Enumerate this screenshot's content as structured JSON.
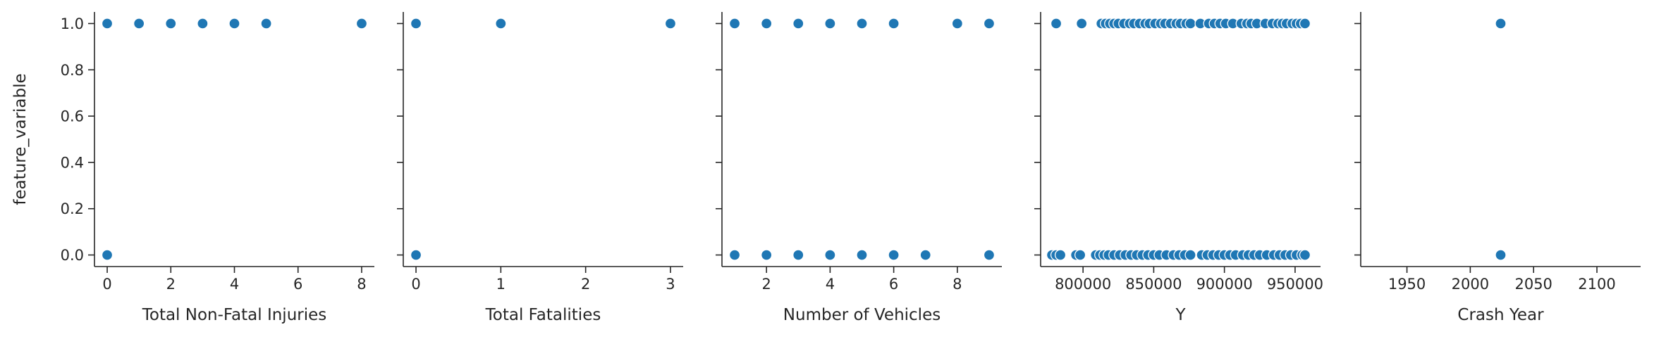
{
  "chart_data": [
    {
      "type": "scatter",
      "xlabel": "Total Non-Fatal Injuries",
      "ylabel": "feature_variable",
      "xlim": [
        -0.4,
        8.4
      ],
      "ylim": [
        -0.05,
        1.05
      ],
      "xticks": [
        0,
        2,
        4,
        6,
        8
      ],
      "xtick_labels": [
        "0",
        "2",
        "4",
        "6",
        "8"
      ],
      "yticks": [
        0.0,
        0.2,
        0.4,
        0.6,
        0.8,
        1.0
      ],
      "ytick_labels": [
        "0.0",
        "0.2",
        "0.4",
        "0.6",
        "0.8",
        "1.0"
      ],
      "points": [
        {
          "x": 0,
          "y": 1
        },
        {
          "x": 1,
          "y": 1
        },
        {
          "x": 2,
          "y": 1
        },
        {
          "x": 3,
          "y": 1
        },
        {
          "x": 4,
          "y": 1
        },
        {
          "x": 5,
          "y": 1
        },
        {
          "x": 8,
          "y": 1
        },
        {
          "x": 0,
          "y": 0
        }
      ]
    },
    {
      "type": "scatter",
      "xlabel": "Total Fatalities",
      "ylabel": "",
      "xlim": [
        -0.15,
        3.15
      ],
      "ylim": [
        -0.05,
        1.05
      ],
      "xticks": [
        0,
        1,
        2,
        3
      ],
      "xtick_labels": [
        "0",
        "1",
        "2",
        "3"
      ],
      "yticks": [
        0.0,
        0.2,
        0.4,
        0.6,
        0.8,
        1.0
      ],
      "ytick_labels": [],
      "points": [
        {
          "x": 0,
          "y": 1
        },
        {
          "x": 1,
          "y": 1
        },
        {
          "x": 3,
          "y": 1
        },
        {
          "x": 0,
          "y": 0
        }
      ]
    },
    {
      "type": "scatter",
      "xlabel": "Number of Vehicles",
      "ylabel": "",
      "xlim": [
        0.6,
        9.4
      ],
      "ylim": [
        -0.05,
        1.05
      ],
      "xticks": [
        2,
        4,
        6,
        8
      ],
      "xtick_labels": [
        "2",
        "4",
        "6",
        "8"
      ],
      "yticks": [
        0.0,
        0.2,
        0.4,
        0.6,
        0.8,
        1.0
      ],
      "ytick_labels": [],
      "points": [
        {
          "x": 1,
          "y": 1
        },
        {
          "x": 2,
          "y": 1
        },
        {
          "x": 3,
          "y": 1
        },
        {
          "x": 4,
          "y": 1
        },
        {
          "x": 5,
          "y": 1
        },
        {
          "x": 6,
          "y": 1
        },
        {
          "x": 8,
          "y": 1
        },
        {
          "x": 9,
          "y": 1
        },
        {
          "x": 1,
          "y": 0
        },
        {
          "x": 2,
          "y": 0
        },
        {
          "x": 3,
          "y": 0
        },
        {
          "x": 4,
          "y": 0
        },
        {
          "x": 5,
          "y": 0
        },
        {
          "x": 6,
          "y": 0
        },
        {
          "x": 7,
          "y": 0
        },
        {
          "x": 9,
          "y": 0
        }
      ]
    },
    {
      "type": "scatter",
      "xlabel": "Y",
      "ylabel": "",
      "xlim": [
        770000,
        968000
      ],
      "ylim": [
        -0.05,
        1.05
      ],
      "xticks": [
        800000,
        850000,
        900000,
        950000
      ],
      "xtick_labels": [
        "800000",
        "850000",
        "900000",
        "950000"
      ],
      "yticks": [
        0.0,
        0.2,
        0.4,
        0.6,
        0.8,
        1.0
      ],
      "ytick_labels": [],
      "points": [
        {
          "x": 781000,
          "y": 1
        },
        {
          "x": 799000,
          "y": 1
        },
        {
          "x": 813000,
          "y": 1
        },
        {
          "x": 816000,
          "y": 1
        },
        {
          "x": 819000,
          "y": 1
        },
        {
          "x": 822000,
          "y": 1
        },
        {
          "x": 825000,
          "y": 1
        },
        {
          "x": 829000,
          "y": 1
        },
        {
          "x": 833000,
          "y": 1
        },
        {
          "x": 836000,
          "y": 1
        },
        {
          "x": 840000,
          "y": 1
        },
        {
          "x": 844000,
          "y": 1
        },
        {
          "x": 847000,
          "y": 1
        },
        {
          "x": 851000,
          "y": 1
        },
        {
          "x": 855000,
          "y": 1
        },
        {
          "x": 858000,
          "y": 1
        },
        {
          "x": 862000,
          "y": 1
        },
        {
          "x": 866000,
          "y": 1
        },
        {
          "x": 869000,
          "y": 1
        },
        {
          "x": 873000,
          "y": 1
        },
        {
          "x": 876000,
          "y": 1
        },
        {
          "x": 883000,
          "y": 1
        },
        {
          "x": 889000,
          "y": 1
        },
        {
          "x": 893000,
          "y": 1
        },
        {
          "x": 897000,
          "y": 1
        },
        {
          "x": 901000,
          "y": 1
        },
        {
          "x": 906000,
          "y": 1
        },
        {
          "x": 912000,
          "y": 1
        },
        {
          "x": 916000,
          "y": 1
        },
        {
          "x": 919000,
          "y": 1
        },
        {
          "x": 923000,
          "y": 1
        },
        {
          "x": 929000,
          "y": 1
        },
        {
          "x": 934000,
          "y": 1
        },
        {
          "x": 938000,
          "y": 1
        },
        {
          "x": 941000,
          "y": 1
        },
        {
          "x": 944000,
          "y": 1
        },
        {
          "x": 948000,
          "y": 1
        },
        {
          "x": 951000,
          "y": 1
        },
        {
          "x": 954000,
          "y": 1
        },
        {
          "x": 957000,
          "y": 1
        },
        {
          "x": 778000,
          "y": 0
        },
        {
          "x": 781000,
          "y": 0
        },
        {
          "x": 784000,
          "y": 0
        },
        {
          "x": 795000,
          "y": 0
        },
        {
          "x": 798000,
          "y": 0
        },
        {
          "x": 809000,
          "y": 0
        },
        {
          "x": 812000,
          "y": 0
        },
        {
          "x": 815000,
          "y": 0
        },
        {
          "x": 818000,
          "y": 0
        },
        {
          "x": 822000,
          "y": 0
        },
        {
          "x": 826000,
          "y": 0
        },
        {
          "x": 830000,
          "y": 0
        },
        {
          "x": 834000,
          "y": 0
        },
        {
          "x": 838000,
          "y": 0
        },
        {
          "x": 842000,
          "y": 0
        },
        {
          "x": 846000,
          "y": 0
        },
        {
          "x": 850000,
          "y": 0
        },
        {
          "x": 854000,
          "y": 0
        },
        {
          "x": 859000,
          "y": 0
        },
        {
          "x": 864000,
          "y": 0
        },
        {
          "x": 868000,
          "y": 0
        },
        {
          "x": 872000,
          "y": 0
        },
        {
          "x": 876000,
          "y": 0
        },
        {
          "x": 884000,
          "y": 0
        },
        {
          "x": 888000,
          "y": 0
        },
        {
          "x": 892000,
          "y": 0
        },
        {
          "x": 896000,
          "y": 0
        },
        {
          "x": 900000,
          "y": 0
        },
        {
          "x": 904000,
          "y": 0
        },
        {
          "x": 908000,
          "y": 0
        },
        {
          "x": 913000,
          "y": 0
        },
        {
          "x": 917000,
          "y": 0
        },
        {
          "x": 921000,
          "y": 0
        },
        {
          "x": 925000,
          "y": 0
        },
        {
          "x": 930000,
          "y": 0
        },
        {
          "x": 935000,
          "y": 0
        },
        {
          "x": 939000,
          "y": 0
        },
        {
          "x": 943000,
          "y": 0
        },
        {
          "x": 947000,
          "y": 0
        },
        {
          "x": 951000,
          "y": 0
        },
        {
          "x": 955000,
          "y": 0
        },
        {
          "x": 957000,
          "y": 0
        }
      ]
    },
    {
      "type": "scatter",
      "xlabel": "Crash Year",
      "ylabel": "",
      "xlim": [
        1913.5,
        2134.5
      ],
      "ylim": [
        -0.05,
        1.05
      ],
      "xticks": [
        1950,
        2000,
        2050,
        2100
      ],
      "xtick_labels": [
        "1950",
        "2000",
        "2050",
        "2100"
      ],
      "yticks": [
        0.0,
        0.2,
        0.4,
        0.6,
        0.8,
        1.0
      ],
      "ytick_labels": [],
      "points": [
        {
          "x": 2024,
          "y": 1
        },
        {
          "x": 2024,
          "y": 0
        }
      ]
    }
  ]
}
